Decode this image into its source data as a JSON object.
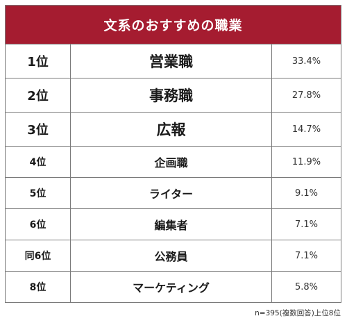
{
  "title": "文系のおすすめの職業",
  "rows": [
    {
      "rank": "1位",
      "job": "営業職",
      "percent": "33.4%"
    },
    {
      "rank": "2位",
      "job": "事務職",
      "percent": "27.8%"
    },
    {
      "rank": "3位",
      "job": "広報",
      "percent": "14.7%"
    },
    {
      "rank": "4位",
      "job": "企画職",
      "percent": "11.9%"
    },
    {
      "rank": "5位",
      "job": "ライター",
      "percent": "9.1%"
    },
    {
      "rank": "6位",
      "job": "編集者",
      "percent": "7.1%"
    },
    {
      "rank": "同6位",
      "job": "公務員",
      "percent": "7.1%"
    },
    {
      "rank": "8位",
      "job": "マーケティング",
      "percent": "5.8%"
    }
  ],
  "note": "n=395(複数回答)上位8位",
  "colors": {
    "header_background": "#a51c30",
    "header_text": "#ffffff",
    "border": "#7a7a7a"
  }
}
